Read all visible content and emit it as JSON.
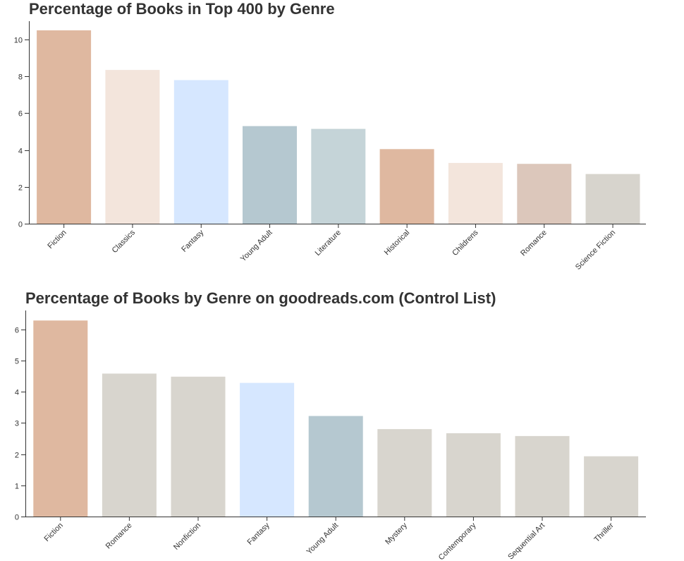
{
  "chart_data": [
    {
      "type": "bar",
      "title": "Percentage of Books in Top 400 by Genre",
      "xlabel": "",
      "ylabel": "",
      "ylim": [
        0,
        11
      ],
      "yticks": [
        0,
        2,
        4,
        6,
        8,
        10
      ],
      "grid": false,
      "categories": [
        "Fiction",
        "Classics",
        "Fantasy",
        "Young Adult",
        "Literature",
        "Historical",
        "Childrens",
        "Romance",
        "Science Fiction"
      ],
      "values": [
        10.5,
        8.35,
        7.8,
        5.3,
        5.15,
        4.05,
        3.3,
        3.25,
        2.7
      ],
      "colors": [
        "#dfb8a0",
        "#f3e5dc",
        "#d6e7ff",
        "#b5c8d0",
        "#c5d4d8",
        "#dfb8a0",
        "#f3e5dc",
        "#dcc7bb",
        "#d7d4cd"
      ]
    },
    {
      "type": "bar",
      "title": "Percentage of Books by Genre on goodreads.com (Control List)",
      "xlabel": "",
      "ylabel": "",
      "ylim": [
        0,
        6.6
      ],
      "yticks": [
        0,
        1,
        2,
        3,
        4,
        5,
        6
      ],
      "grid": false,
      "categories": [
        "Fiction",
        "Romance",
        "Nonfiction",
        "Fantasy",
        "Young Adult",
        "Mystery",
        "Contemporary",
        "Sequential Art",
        "Thriller"
      ],
      "values": [
        6.28,
        4.58,
        4.48,
        4.28,
        3.22,
        2.8,
        2.67,
        2.58,
        1.93
      ],
      "colors": [
        "#dfb8a0",
        "#d8d5ce",
        "#d8d5ce",
        "#d6e7ff",
        "#b5c8d0",
        "#d8d5ce",
        "#d8d5ce",
        "#d8d5ce",
        "#d8d5ce"
      ]
    }
  ]
}
